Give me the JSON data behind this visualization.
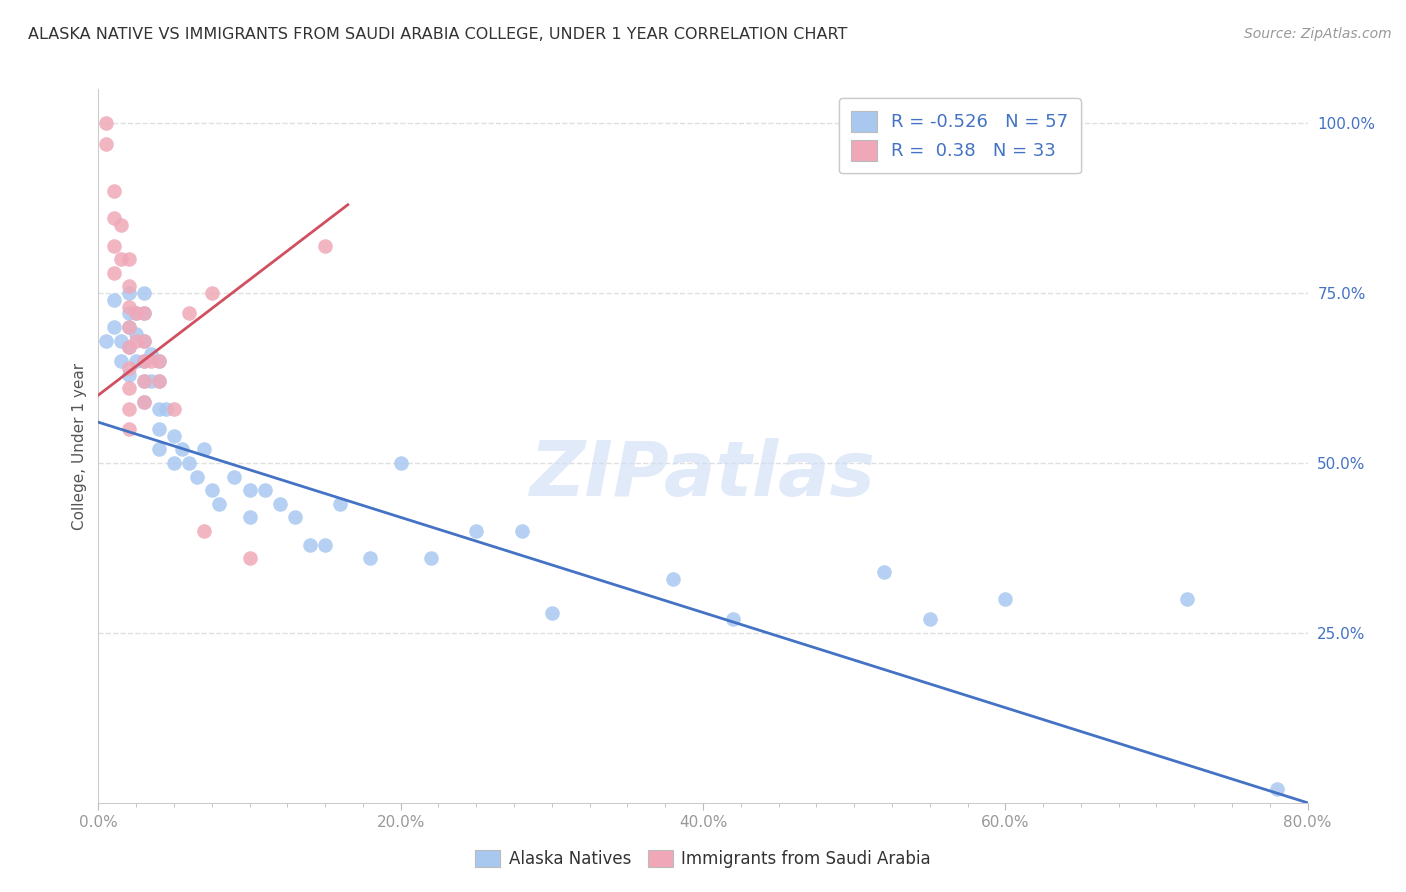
{
  "title": "ALASKA NATIVE VS IMMIGRANTS FROM SAUDI ARABIA COLLEGE, UNDER 1 YEAR CORRELATION CHART",
  "source": "Source: ZipAtlas.com",
  "ylabel": "College, Under 1 year",
  "legend_labels": [
    "Alaska Natives",
    "Immigrants from Saudi Arabia"
  ],
  "r_blue": -0.526,
  "n_blue": 57,
  "r_pink": 0.38,
  "n_pink": 33,
  "blue_color": "#a8c8f0",
  "pink_color": "#f0a8b8",
  "blue_line_color": "#4472c4",
  "pink_line_color": "#d05060",
  "title_color": "#333333",
  "axis_label_color": "#555555",
  "right_axis_color": "#4472c4",
  "tick_color": "#999999",
  "watermark": "ZIPatlas",
  "xmin": 0.0,
  "xmax": 0.8,
  "ymin": 0.0,
  "ymax": 1.05,
  "xtick_labels": [
    "0.0%",
    "",
    "",
    "",
    "",
    "",
    "",
    "",
    "20.0%",
    "",
    "",
    "",
    "",
    "",
    "",
    "",
    "40.0%",
    "",
    "",
    "",
    "",
    "",
    "",
    "",
    "60.0%",
    "",
    "",
    "",
    "",
    "",
    "",
    "",
    "80.0%"
  ],
  "xtick_values": [
    0.0,
    0.025,
    0.05,
    0.075,
    0.1,
    0.125,
    0.15,
    0.175,
    0.2,
    0.225,
    0.25,
    0.275,
    0.3,
    0.325,
    0.35,
    0.375,
    0.4,
    0.425,
    0.45,
    0.475,
    0.5,
    0.525,
    0.55,
    0.575,
    0.6,
    0.625,
    0.65,
    0.675,
    0.7,
    0.725,
    0.75,
    0.775,
    0.8
  ],
  "xtick_major_labels": [
    "0.0%",
    "20.0%",
    "40.0%",
    "60.0%",
    "80.0%"
  ],
  "xtick_major_values": [
    0.0,
    0.2,
    0.4,
    0.6,
    0.8
  ],
  "ytick_right_labels": [
    "100.0%",
    "75.0%",
    "50.0%",
    "25.0%"
  ],
  "ytick_right_values": [
    1.0,
    0.75,
    0.5,
    0.25
  ],
  "blue_scatter_x": [
    0.005,
    0.01,
    0.01,
    0.015,
    0.015,
    0.02,
    0.02,
    0.02,
    0.02,
    0.02,
    0.025,
    0.025,
    0.025,
    0.03,
    0.03,
    0.03,
    0.03,
    0.03,
    0.03,
    0.035,
    0.035,
    0.04,
    0.04,
    0.04,
    0.04,
    0.04,
    0.045,
    0.05,
    0.05,
    0.055,
    0.06,
    0.065,
    0.07,
    0.075,
    0.08,
    0.09,
    0.1,
    0.1,
    0.11,
    0.12,
    0.13,
    0.14,
    0.15,
    0.16,
    0.18,
    0.2,
    0.22,
    0.25,
    0.28,
    0.3,
    0.38,
    0.42,
    0.52,
    0.55,
    0.6,
    0.72,
    0.78
  ],
  "blue_scatter_y": [
    0.68,
    0.74,
    0.7,
    0.68,
    0.65,
    0.75,
    0.72,
    0.7,
    0.67,
    0.63,
    0.72,
    0.69,
    0.65,
    0.75,
    0.72,
    0.68,
    0.65,
    0.62,
    0.59,
    0.66,
    0.62,
    0.65,
    0.62,
    0.58,
    0.55,
    0.52,
    0.58,
    0.54,
    0.5,
    0.52,
    0.5,
    0.48,
    0.52,
    0.46,
    0.44,
    0.48,
    0.46,
    0.42,
    0.46,
    0.44,
    0.42,
    0.38,
    0.38,
    0.44,
    0.36,
    0.5,
    0.36,
    0.4,
    0.4,
    0.28,
    0.33,
    0.27,
    0.34,
    0.27,
    0.3,
    0.3,
    0.02
  ],
  "pink_scatter_x": [
    0.005,
    0.005,
    0.01,
    0.01,
    0.01,
    0.01,
    0.015,
    0.015,
    0.02,
    0.02,
    0.02,
    0.02,
    0.02,
    0.02,
    0.02,
    0.02,
    0.02,
    0.025,
    0.025,
    0.03,
    0.03,
    0.03,
    0.03,
    0.03,
    0.035,
    0.04,
    0.04,
    0.05,
    0.06,
    0.07,
    0.075,
    0.1,
    0.15
  ],
  "pink_scatter_y": [
    1.0,
    0.97,
    0.9,
    0.86,
    0.82,
    0.78,
    0.85,
    0.8,
    0.8,
    0.76,
    0.73,
    0.7,
    0.67,
    0.64,
    0.61,
    0.58,
    0.55,
    0.72,
    0.68,
    0.72,
    0.68,
    0.65,
    0.62,
    0.59,
    0.65,
    0.65,
    0.62,
    0.58,
    0.72,
    0.4,
    0.75,
    0.36,
    0.82
  ],
  "grid_color": "#e0e0e0",
  "background_color": "#ffffff"
}
